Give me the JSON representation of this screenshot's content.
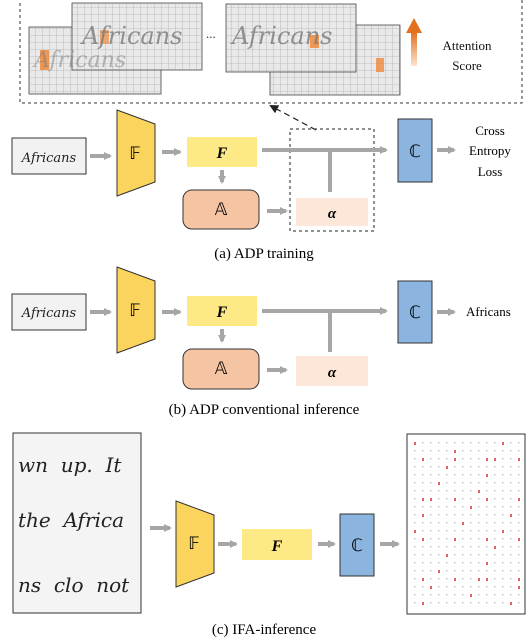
{
  "top_panel": {
    "ellipsis": "...",
    "legend_label_line1": "Attention",
    "legend_label_line2": "Score",
    "handwriting_word": "Africans"
  },
  "colors": {
    "feature_extractor": "#fbd45e",
    "feature_map": "#fdea86",
    "attention_module": "#f5c4a3",
    "attention_map": "#fde7d8",
    "classifier": "#8bb4de",
    "arrow": "#a6a6a6",
    "heat": "#f08a3c"
  },
  "panel_a": {
    "input_word": "Africans",
    "F_block": "𝔽",
    "feature_label": "F",
    "A_block": "𝔸",
    "alpha_label": "α",
    "C_block": "ℂ",
    "output_line1": "Cross",
    "output_line2": "Entropy",
    "output_line3": "Loss",
    "caption": "(a) ADP training"
  },
  "panel_b": {
    "input_word": "Africans",
    "F_block": "𝔽",
    "feature_label": "F",
    "A_block": "𝔸",
    "alpha_label": "α",
    "C_block": "ℂ",
    "output": "Africans",
    "caption": "(b) ADP conventional inference"
  },
  "panel_c": {
    "text_line1": "wn  up.  It",
    "text_line2": "the  Africa",
    "text_line3": "ns  clo  not",
    "F_block": "𝔽",
    "feature_label": "F",
    "C_block": "ℂ",
    "caption": "(c) IFA-inference"
  }
}
